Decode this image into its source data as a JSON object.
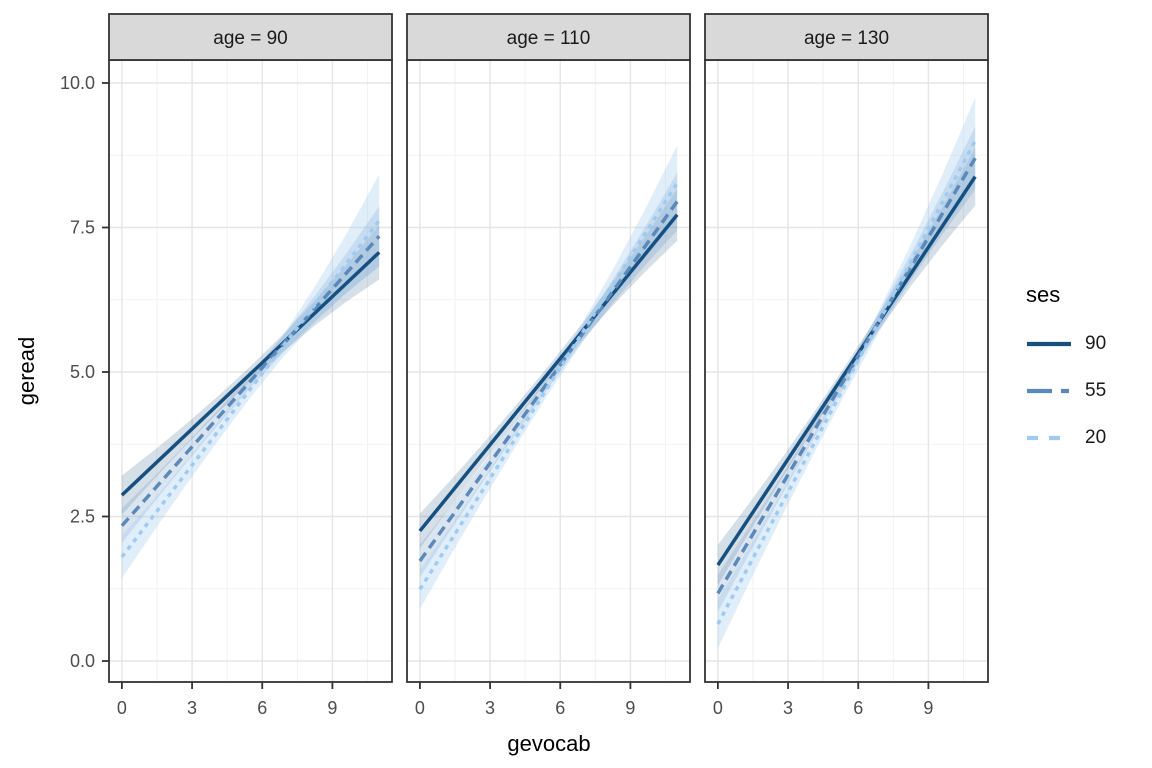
{
  "chart_data": {
    "type": "line",
    "facet_variable": "age",
    "x_label": "gevocab",
    "y_label": "geread",
    "x_ticks": [
      0,
      3,
      6,
      9
    ],
    "x_tick_labels": [
      "0",
      "3",
      "6",
      "9"
    ],
    "y_ticks": [
      0.0,
      2.5,
      5.0,
      7.5,
      10.0
    ],
    "y_tick_labels": [
      "0.0",
      "2.5",
      "5.0",
      "7.5",
      "10.0"
    ],
    "x_minor_ticks": [
      1.5,
      4.5,
      7.5,
      10.5
    ],
    "y_minor_ticks": [
      1.25,
      3.75,
      6.25,
      8.75
    ],
    "x_data_range": [
      0,
      11
    ],
    "y_axis_range": [
      -0.36,
      10.4
    ],
    "grid": "on",
    "legend": {
      "title": "ses",
      "position": "right",
      "entries": [
        {
          "label": "90",
          "color": "#165080",
          "linetype": "solid",
          "dash": "",
          "key_dash": ""
        },
        {
          "label": "55",
          "color": "#5B89BA",
          "linetype": "dashed",
          "dash": "10,6",
          "key_dash": "25,9,8,30"
        },
        {
          "label": "20",
          "color": "#9FCBF0",
          "linetype": "dotted",
          "dash": "4.5,5",
          "key_dash": "11,11"
        }
      ]
    },
    "facets": [
      {
        "label": "age = 90",
        "series": [
          {
            "ses": "90",
            "x": [
              0,
              11
            ],
            "y": [
              2.87,
              7.07
            ],
            "ci0": 0.34,
            "cim": 0.13,
            "ci1": 0.47
          },
          {
            "ses": "55",
            "x": [
              0,
              11
            ],
            "y": [
              2.34,
              7.35
            ],
            "ci0": 0.3,
            "cim": 0.12,
            "ci1": 0.52
          },
          {
            "ses": "20",
            "x": [
              0,
              11
            ],
            "y": [
              1.8,
              7.62
            ],
            "ci0": 0.37,
            "cim": 0.15,
            "ci1": 0.8
          }
        ]
      },
      {
        "label": "age = 110",
        "series": [
          {
            "ses": "90",
            "x": [
              0,
              11
            ],
            "y": [
              2.25,
              7.72
            ],
            "ci0": 0.3,
            "cim": 0.12,
            "ci1": 0.45
          },
          {
            "ses": "55",
            "x": [
              0,
              11
            ],
            "y": [
              1.73,
              7.95
            ],
            "ci0": 0.28,
            "cim": 0.11,
            "ci1": 0.5
          },
          {
            "ses": "20",
            "x": [
              0,
              11
            ],
            "y": [
              1.24,
              8.27
            ],
            "ci0": 0.34,
            "cim": 0.13,
            "ci1": 0.65
          }
        ]
      },
      {
        "label": "age = 130",
        "series": [
          {
            "ses": "90",
            "x": [
              0,
              11
            ],
            "y": [
              1.66,
              8.38
            ],
            "ci0": 0.35,
            "cim": 0.12,
            "ci1": 0.5
          },
          {
            "ses": "55",
            "x": [
              0,
              11
            ],
            "y": [
              1.17,
              8.7
            ],
            "ci0": 0.32,
            "cim": 0.12,
            "ci1": 0.55
          },
          {
            "ses": "20",
            "x": [
              0,
              11
            ],
            "y": [
              0.64,
              9.0
            ],
            "ci0": 0.42,
            "cim": 0.15,
            "ci1": 0.75
          }
        ]
      }
    ],
    "style": {
      "background": "#FFFFFF",
      "strip_bg": "#D9D9D9",
      "panel_border": "#333333",
      "grid_major": "#E5E5E5",
      "grid_minor": "#F2F2F2",
      "tick_color": "#333333",
      "tick_label_color": "#4D4D4D",
      "text_color": "#1A1A1A",
      "ribbon_opacity": [
        0.18,
        0.22,
        0.32
      ],
      "line_width": 3.5
    }
  }
}
